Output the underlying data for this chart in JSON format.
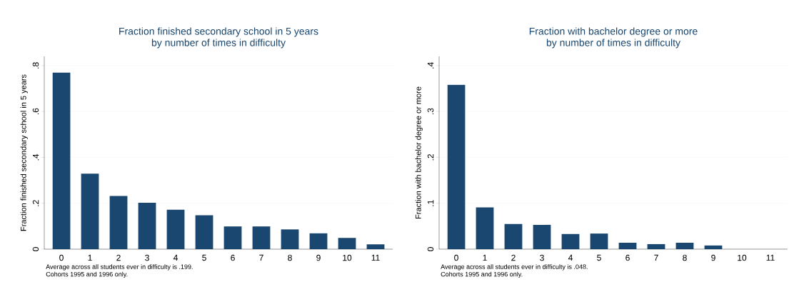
{
  "chart_data": [
    {
      "type": "bar",
      "title": "Fraction finished secondary school in 5 years",
      "subtitle": "by number of times in difficulty",
      "ylabel": "Fraction finished secondary school in 5 years",
      "categories": [
        "0",
        "1",
        "2",
        "3",
        "4",
        "5",
        "6",
        "7",
        "8",
        "9",
        "10",
        "11"
      ],
      "values": [
        0.77,
        0.329,
        0.232,
        0.202,
        0.172,
        0.148,
        0.099,
        0.099,
        0.086,
        0.069,
        0.049,
        0.021
      ],
      "color": "#1a476f",
      "ylim": [
        0,
        0.84
      ],
      "yticks": [
        {
          "value": 0,
          "label": "0"
        },
        {
          "value": 0.2,
          "label": ".2"
        },
        {
          "value": 0.4,
          "label": ".4"
        },
        {
          "value": 0.6,
          "label": ".6"
        },
        {
          "value": 0.8,
          "label": ".8"
        }
      ],
      "grid": "y",
      "annotations": [
        "Average across all students ever in difficulty is .199.",
        "Cohorts 1995 and 1996 only."
      ]
    },
    {
      "type": "bar",
      "title": "Fraction with bachelor degree or more",
      "subtitle": "by number of times in difficulty",
      "ylabel": "Fraction with bachelor degree or more",
      "categories": [
        "0",
        "1",
        "2",
        "3",
        "4",
        "5",
        "6",
        "7",
        "8",
        "9",
        "10",
        "11"
      ],
      "values": [
        0.358,
        0.091,
        0.055,
        0.053,
        0.033,
        0.034,
        0.014,
        0.011,
        0.014,
        0.008,
        0,
        0
      ],
      "color": "#1a476f",
      "ylim": [
        0,
        0.42
      ],
      "yticks": [
        {
          "value": 0,
          "label": "0"
        },
        {
          "value": 0.1,
          "label": ".1"
        },
        {
          "value": 0.2,
          "label": ".2"
        },
        {
          "value": 0.3,
          "label": ".3"
        },
        {
          "value": 0.4,
          "label": ".4"
        }
      ],
      "grid": "y",
      "annotations": [
        "Average across all students ever in difficulty is .048.",
        "Cohorts 1995 and 1996 only."
      ]
    }
  ]
}
